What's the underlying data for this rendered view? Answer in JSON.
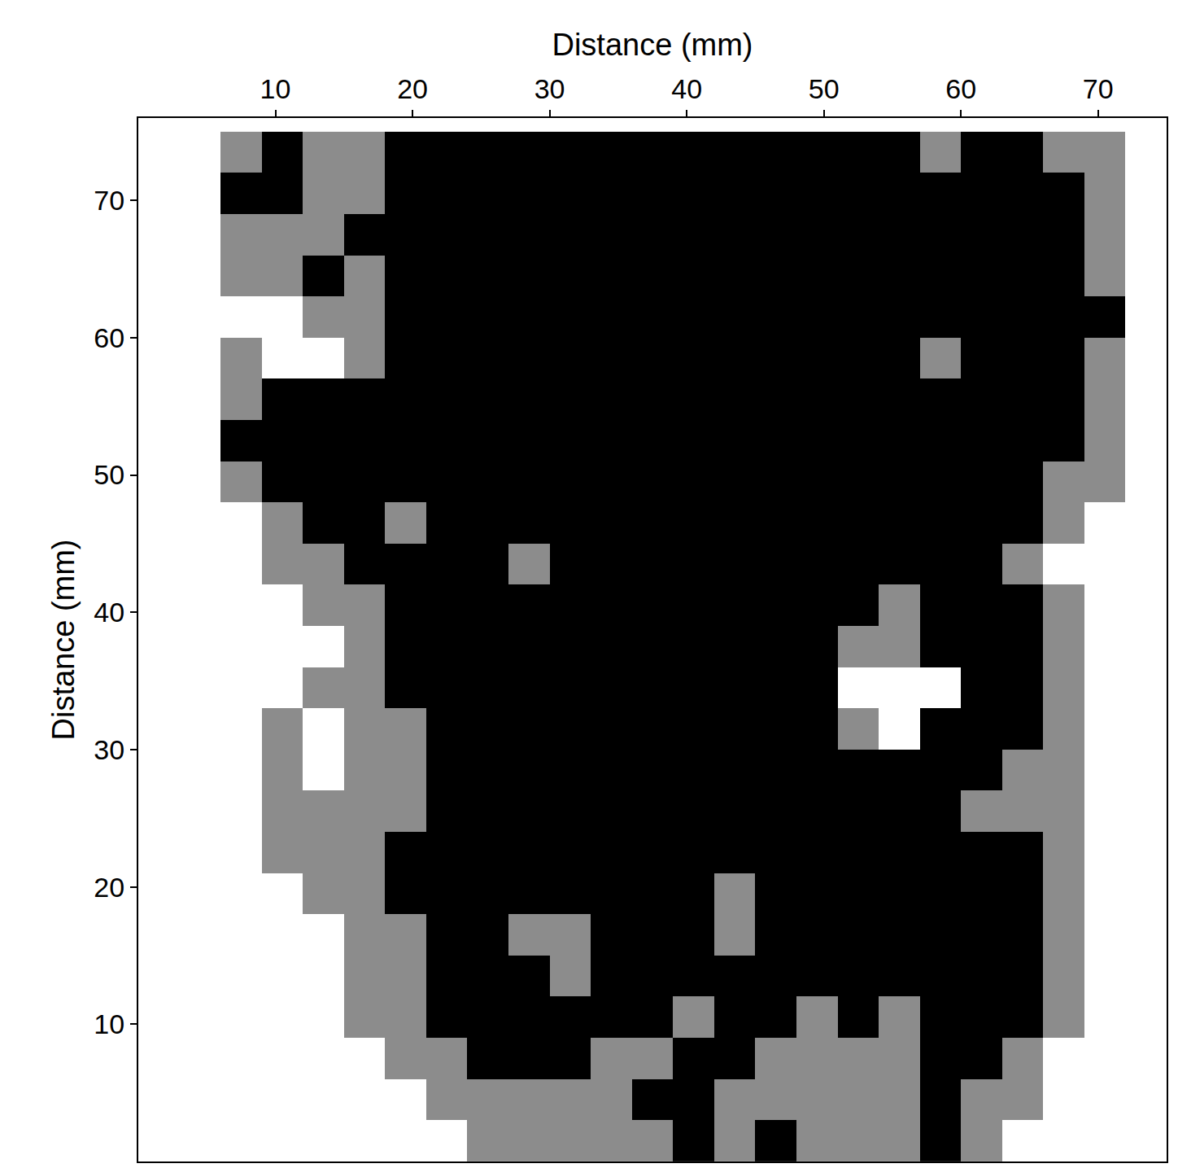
{
  "chart_data": {
    "type": "heatmap",
    "xlabel": "Distance (mm)",
    "ylabel": "Distance (mm)",
    "xlim": [
      0,
      75
    ],
    "ylim": [
      0,
      76
    ],
    "xticks": [
      10,
      20,
      30,
      40,
      50,
      60,
      70
    ],
    "yticks": [
      10,
      20,
      30,
      40,
      50,
      60,
      70
    ],
    "grid": false,
    "zlim": [
      0,
      2
    ],
    "x": [
      1.5,
      4.5,
      7.5,
      10.5,
      13.5,
      16.5,
      19.5,
      22.5,
      25.5,
      28.5,
      31.5,
      34.5,
      37.5,
      40.5,
      43.5,
      46.5,
      49.5,
      52.5,
      55.5,
      58.5,
      61.5,
      64.5,
      67.5,
      70.5,
      73.5
    ],
    "y": [
      73.5,
      70.5,
      67.5,
      64.5,
      61.5,
      58.5,
      55.5,
      52.5,
      49.5,
      46.5,
      43.5,
      40.5,
      37.5,
      34.5,
      31.5,
      28.5,
      25.5,
      22.5,
      19.5,
      16.5,
      13.5,
      10.5,
      7.5,
      4.5,
      1.5
    ],
    "z": [
      [
        0,
        0,
        1,
        2,
        1,
        1,
        2,
        2,
        2,
        2,
        2,
        2,
        2,
        2,
        2,
        2,
        2,
        2,
        2,
        1,
        2,
        2,
        1,
        1,
        0
      ],
      [
        0,
        0,
        2,
        2,
        1,
        1,
        2,
        2,
        2,
        2,
        2,
        2,
        2,
        2,
        2,
        2,
        2,
        2,
        2,
        2,
        2,
        2,
        2,
        1,
        0
      ],
      [
        0,
        0,
        1,
        1,
        1,
        2,
        2,
        2,
        2,
        2,
        2,
        2,
        2,
        2,
        2,
        2,
        2,
        2,
        2,
        2,
        2,
        2,
        2,
        1,
        0
      ],
      [
        0,
        0,
        1,
        1,
        2,
        1,
        2,
        2,
        2,
        2,
        2,
        2,
        2,
        2,
        2,
        2,
        2,
        2,
        2,
        2,
        2,
        2,
        2,
        1,
        0
      ],
      [
        0,
        0,
        0,
        0,
        1,
        1,
        2,
        2,
        2,
        2,
        2,
        2,
        2,
        2,
        2,
        2,
        2,
        2,
        2,
        2,
        2,
        2,
        2,
        2,
        0
      ],
      [
        0,
        0,
        1,
        0,
        0,
        1,
        2,
        2,
        2,
        2,
        2,
        2,
        2,
        2,
        2,
        2,
        2,
        2,
        2,
        1,
        2,
        2,
        2,
        1,
        0
      ],
      [
        0,
        0,
        1,
        2,
        2,
        2,
        2,
        2,
        2,
        2,
        2,
        2,
        2,
        2,
        2,
        2,
        2,
        2,
        2,
        2,
        2,
        2,
        2,
        1,
        0
      ],
      [
        0,
        0,
        2,
        2,
        2,
        2,
        2,
        2,
        2,
        2,
        2,
        2,
        2,
        2,
        2,
        2,
        2,
        2,
        2,
        2,
        2,
        2,
        2,
        1,
        0
      ],
      [
        0,
        0,
        1,
        2,
        2,
        2,
        2,
        2,
        2,
        2,
        2,
        2,
        2,
        2,
        2,
        2,
        2,
        2,
        2,
        2,
        2,
        2,
        1,
        1,
        0
      ],
      [
        0,
        0,
        0,
        1,
        2,
        2,
        1,
        2,
        2,
        2,
        2,
        2,
        2,
        2,
        2,
        2,
        2,
        2,
        2,
        2,
        2,
        2,
        1,
        0,
        0
      ],
      [
        0,
        0,
        0,
        1,
        1,
        2,
        2,
        2,
        2,
        1,
        2,
        2,
        2,
        2,
        2,
        2,
        2,
        2,
        2,
        2,
        2,
        1,
        0,
        0,
        0
      ],
      [
        0,
        0,
        0,
        0,
        1,
        1,
        2,
        2,
        2,
        2,
        2,
        2,
        2,
        2,
        2,
        2,
        2,
        2,
        1,
        2,
        2,
        2,
        1,
        0,
        0
      ],
      [
        0,
        0,
        0,
        0,
        0,
        1,
        2,
        2,
        2,
        2,
        2,
        2,
        2,
        2,
        2,
        2,
        2,
        1,
        1,
        2,
        2,
        2,
        1,
        0,
        0
      ],
      [
        0,
        0,
        0,
        0,
        1,
        1,
        2,
        2,
        2,
        2,
        2,
        2,
        2,
        2,
        2,
        2,
        2,
        0,
        0,
        0,
        2,
        2,
        1,
        0,
        0
      ],
      [
        0,
        0,
        0,
        1,
        0,
        1,
        1,
        2,
        2,
        2,
        2,
        2,
        2,
        2,
        2,
        2,
        2,
        1,
        0,
        2,
        2,
        2,
        1,
        0,
        0
      ],
      [
        0,
        0,
        0,
        1,
        0,
        1,
        1,
        2,
        2,
        2,
        2,
        2,
        2,
        2,
        2,
        2,
        2,
        2,
        2,
        2,
        2,
        1,
        1,
        0,
        0
      ],
      [
        0,
        0,
        0,
        1,
        1,
        1,
        1,
        2,
        2,
        2,
        2,
        2,
        2,
        2,
        2,
        2,
        2,
        2,
        2,
        2,
        1,
        1,
        1,
        0,
        0
      ],
      [
        0,
        0,
        0,
        1,
        1,
        1,
        2,
        2,
        2,
        2,
        2,
        2,
        2,
        2,
        2,
        2,
        2,
        2,
        2,
        2,
        2,
        2,
        1,
        0,
        0
      ],
      [
        0,
        0,
        0,
        0,
        1,
        1,
        2,
        2,
        2,
        2,
        2,
        2,
        2,
        2,
        1,
        2,
        2,
        2,
        2,
        2,
        2,
        2,
        1,
        0,
        0
      ],
      [
        0,
        0,
        0,
        0,
        0,
        1,
        1,
        2,
        2,
        1,
        1,
        2,
        2,
        2,
        1,
        2,
        2,
        2,
        2,
        2,
        2,
        2,
        1,
        0,
        0
      ],
      [
        0,
        0,
        0,
        0,
        0,
        1,
        1,
        2,
        2,
        2,
        1,
        2,
        2,
        2,
        2,
        2,
        2,
        2,
        2,
        2,
        2,
        2,
        1,
        0,
        0
      ],
      [
        0,
        0,
        0,
        0,
        0,
        1,
        1,
        2,
        2,
        2,
        2,
        2,
        2,
        1,
        2,
        2,
        1,
        2,
        1,
        2,
        2,
        2,
        1,
        0,
        0
      ],
      [
        0,
        0,
        0,
        0,
        0,
        0,
        1,
        1,
        2,
        2,
        2,
        1,
        1,
        2,
        2,
        1,
        1,
        1,
        1,
        2,
        2,
        1,
        0,
        0,
        0
      ],
      [
        0,
        0,
        0,
        0,
        0,
        0,
        0,
        1,
        1,
        1,
        1,
        1,
        2,
        2,
        1,
        1,
        1,
        1,
        1,
        2,
        1,
        1,
        0,
        0,
        0
      ],
      [
        0,
        0,
        0,
        0,
        0,
        0,
        0,
        0,
        1,
        1,
        1,
        1,
        1,
        2,
        1,
        2,
        1,
        1,
        1,
        2,
        1,
        0,
        0,
        0,
        0
      ]
    ]
  }
}
